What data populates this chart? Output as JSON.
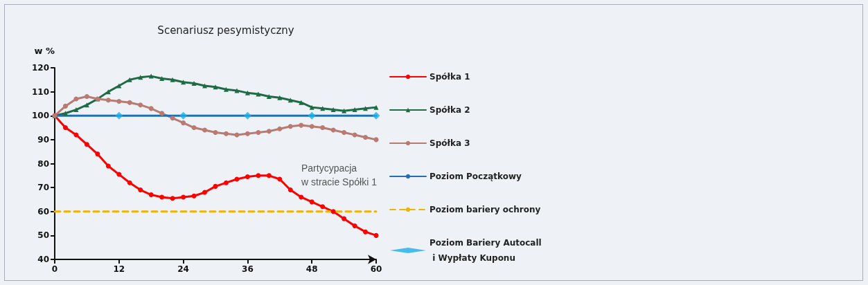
{
  "chart_data": {
    "type": "line",
    "title": "Scenariusz pesymistyczny",
    "ylabel": "w %",
    "x": [
      0,
      2,
      4,
      6,
      8,
      10,
      12,
      14,
      16,
      18,
      20,
      22,
      24,
      26,
      28,
      30,
      32,
      34,
      36,
      38,
      40,
      42,
      44,
      46,
      48,
      50,
      52,
      54,
      56,
      58,
      60
    ],
    "series": [
      {
        "name": "Spółka 1",
        "color": "#ff0000",
        "marker": "circle",
        "values": [
          100,
          95,
          92,
          88,
          84,
          79,
          75.5,
          72,
          69,
          67,
          66,
          65.5,
          66,
          66.5,
          68,
          70.5,
          72,
          73.5,
          74.5,
          75,
          75,
          73.5,
          69,
          66,
          64,
          62,
          60,
          57,
          54,
          51.5,
          50
        ]
      },
      {
        "name": "Spółka 2",
        "color": "#1e6b45",
        "marker": "triangle",
        "values": [
          100,
          101,
          102.5,
          104.5,
          107,
          110,
          112.5,
          115,
          116,
          116.5,
          115.5,
          115,
          114,
          113.5,
          112.5,
          112,
          111,
          110.5,
          109.5,
          109,
          108,
          107.5,
          106.5,
          105.5,
          103.5,
          103,
          102.5,
          102,
          102.5,
          103,
          103.5
        ]
      },
      {
        "name": "Spółka 3",
        "color": "#b97a72",
        "marker": "circle",
        "values": [
          100,
          104,
          107,
          108,
          107,
          106.5,
          106,
          105.5,
          104.5,
          103,
          101,
          99,
          97,
          95,
          94,
          93,
          92.5,
          92,
          92.5,
          93,
          93.5,
          94.5,
          95.5,
          96,
          95.5,
          95,
          94,
          93,
          92,
          91,
          90
        ]
      },
      {
        "name": "Poziom Początkowy",
        "color": "#1f6fb5",
        "marker": "none",
        "x": [
          0,
          60
        ],
        "values": [
          100,
          100
        ]
      },
      {
        "name": "Poziom bariery ochrony",
        "color": "#f0b400",
        "marker": "none",
        "line_style": "dashed",
        "x": [
          0,
          60
        ],
        "values": [
          60,
          60
        ]
      },
      {
        "name": "Poziom Bariery Autocall i Wypłaty Kuponu",
        "type": "scatter",
        "color": "#1aaee8",
        "marker": "diamond",
        "x": [
          12,
          24,
          36,
          48,
          60
        ],
        "values": [
          100,
          100,
          100,
          100,
          100
        ]
      }
    ],
    "annotations": [
      "Partycypacja\nw stracie Spółki 1"
    ],
    "xlim": [
      0,
      60
    ],
    "xticks": [
      0,
      12,
      24,
      36,
      48,
      60
    ],
    "ylim": [
      40,
      120
    ],
    "yticks": [
      40,
      50,
      60,
      70,
      80,
      90,
      100,
      110,
      120
    ],
    "grid": false,
    "legend": "right"
  }
}
